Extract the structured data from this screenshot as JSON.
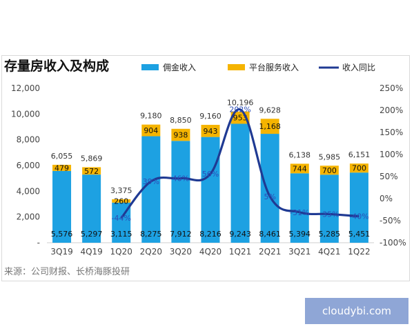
{
  "chart_data": {
    "type": "bar",
    "title": "存量房收入及构成",
    "source": "来源：公司财报、长桥海豚投研",
    "categories": [
      "3Q19",
      "4Q19",
      "1Q20",
      "2Q20",
      "3Q20",
      "4Q20",
      "1Q21",
      "2Q21",
      "3Q21",
      "4Q21",
      "1Q22"
    ],
    "series": [
      {
        "name": "佣金收入",
        "color": "#1da1e2",
        "values": [
          5576,
          5297,
          3115,
          8275,
          7912,
          8216,
          9243,
          8461,
          5394,
          5285,
          5451
        ],
        "labels": [
          "5,576",
          "5,297",
          "3,115",
          "8,275",
          "7,912",
          "8,216",
          "9,243",
          "8,461",
          "5,394",
          "5,285",
          "5,451"
        ]
      },
      {
        "name": "平台服务收入",
        "color": "#f5b400",
        "values": [
          479,
          572,
          260,
          904,
          938,
          943,
          953,
          1168,
          744,
          700,
          700
        ],
        "labels": [
          "479",
          "572",
          "260",
          "904",
          "938",
          "943",
          "953",
          "1,168",
          "744",
          "700",
          "700"
        ]
      },
      {
        "name": "收入同比",
        "color": "#1f3a93",
        "axis": "right",
        "values": [
          null,
          null,
          -44,
          39,
          46,
          56,
          202,
          5,
          -31,
          -35,
          -40
        ],
        "labels": [
          "",
          "",
          "-44%",
          "39%",
          "46%",
          "56%",
          "202%",
          "5%",
          "-31%",
          "-35%",
          "-40%"
        ]
      }
    ],
    "totals": [
      "6,055",
      "5,869",
      "3,375",
      "9,180",
      "8,850",
      "9,160",
      "10,196",
      "9,628",
      "6,138",
      "5,985",
      "6,151"
    ],
    "y_left": {
      "min": 0,
      "max": 12000,
      "ticks": [
        0,
        2000,
        4000,
        6000,
        8000,
        10000,
        12000
      ],
      "tick_labels": [
        "-",
        "2,000",
        "4,000",
        "6,000",
        "8,000",
        "10,000",
        "12,000"
      ]
    },
    "y_right": {
      "min": -100,
      "max": 250,
      "ticks": [
        -100,
        -50,
        0,
        50,
        100,
        150,
        200,
        250
      ],
      "tick_labels": [
        "-100%",
        "-50%",
        "0%",
        "50%",
        "100%",
        "150%",
        "200%",
        "250%"
      ]
    },
    "legend_position": "top",
    "grid": false
  },
  "watermark": "cloudybi.com"
}
